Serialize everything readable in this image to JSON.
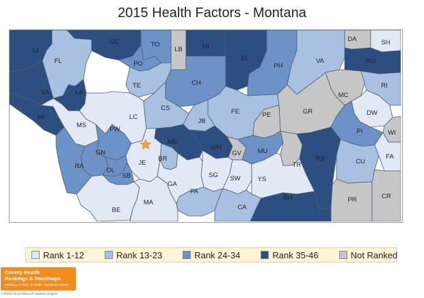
{
  "title": "2015 Health Factors - Montana",
  "colors": {
    "rank_1_12": "#e1e9f4",
    "rank_13_23": "#a9c1e1",
    "rank_24_34": "#6c92c8",
    "rank_35_46": "#2c4e80",
    "not_ranked": "#c6c6c6",
    "star": "#f3a839"
  },
  "legend": [
    {
      "label": "Rank 1-12",
      "color": "#e1e9f4"
    },
    {
      "label": "Rank 13-23",
      "color": "#a9c1e1"
    },
    {
      "label": "Rank 24-34",
      "color": "#6c92c8"
    },
    {
      "label": "Rank 35-46",
      "color": "#2c4e80"
    },
    {
      "label": "Not Ranked",
      "color": "#c6c6c6"
    }
  ],
  "counties": [
    {
      "label": "LI",
      "rank": "Rank 35-46"
    },
    {
      "label": "FL",
      "rank": "Rank 13-23"
    },
    {
      "label": "GC",
      "rank": "Rank 35-46"
    },
    {
      "label": "TO",
      "rank": "Rank 24-34"
    },
    {
      "label": "LB",
      "rank": "Not Ranked"
    },
    {
      "label": "HI",
      "rank": "Rank 35-46"
    },
    {
      "label": "BL",
      "rank": "Rank 35-46"
    },
    {
      "label": "PH",
      "rank": "Rank 24-34"
    },
    {
      "label": "VA",
      "rank": "Rank 13-23"
    },
    {
      "label": "DA",
      "rank": "Not Ranked"
    },
    {
      "label": "SH",
      "rank": "Rank 1-12"
    },
    {
      "label": "RO",
      "rank": "Rank 35-46"
    },
    {
      "label": "PO",
      "rank": "Rank 24-34"
    },
    {
      "label": "SA",
      "rank": "Rank 35-46"
    },
    {
      "label": "LA",
      "rank": "Rank 35-46"
    },
    {
      "label": "TE",
      "rank": "Rank 13-23"
    },
    {
      "label": "CH",
      "rank": "Rank 24-34"
    },
    {
      "label": "MC",
      "rank": "Not Ranked"
    },
    {
      "label": "RI",
      "rank": "Rank 13-23"
    },
    {
      "label": "MI",
      "rank": "Rank 35-46"
    },
    {
      "label": "MS",
      "rank": "Rank 1-12"
    },
    {
      "label": "LC",
      "rank": "Rank 1-12"
    },
    {
      "label": "CS",
      "rank": "Rank 13-23"
    },
    {
      "label": "FE",
      "rank": "Rank 13-23"
    },
    {
      "label": "GR",
      "rank": "Not Ranked"
    },
    {
      "label": "DW",
      "rank": "Rank 1-12"
    },
    {
      "label": "JB",
      "rank": "Rank 13-23"
    },
    {
      "label": "PE",
      "rank": "Not Ranked"
    },
    {
      "label": "PW",
      "rank": "Rank 24-34"
    },
    {
      "label": "PI",
      "rank": "Rank 24-34"
    },
    {
      "label": "WI",
      "rank": "Not Ranked"
    },
    {
      "label": "GN",
      "rank": "Rank 24-34"
    },
    {
      "label": "ME",
      "rank": "Rank 35-46"
    },
    {
      "label": "WH",
      "rank": "Rank 35-46"
    },
    {
      "label": "GV",
      "rank": "Not Ranked"
    },
    {
      "label": "MU",
      "rank": "Rank 24-34"
    },
    {
      "label": "RA",
      "rank": "Rank 24-34"
    },
    {
      "label": "JE",
      "rank": "Rank 1-12"
    },
    {
      "label": "BR",
      "rank": "Rank 13-23"
    },
    {
      "label": "TR",
      "rank": "Not Ranked"
    },
    {
      "label": "RS",
      "rank": "Rank 35-46"
    },
    {
      "label": "CU",
      "rank": "Rank 13-23"
    },
    {
      "label": "FA",
      "rank": "Rank 1-12"
    },
    {
      "label": "DL",
      "rank": "Rank 24-34"
    },
    {
      "label": "SB",
      "rank": "Rank 24-34"
    },
    {
      "label": "SG",
      "rank": "Rank 1-12"
    },
    {
      "label": "SW",
      "rank": "Rank 1-12"
    },
    {
      "label": "YS",
      "rank": "Rank 1-12"
    },
    {
      "label": "GA",
      "rank": "Rank 1-12"
    },
    {
      "label": "PA",
      "rank": "Rank 13-23"
    },
    {
      "label": "BE",
      "rank": "Rank 1-12"
    },
    {
      "label": "MA",
      "rank": "Rank 1-12"
    },
    {
      "label": "CA",
      "rank": "Rank 13-23"
    },
    {
      "label": "BH",
      "rank": "Rank 35-46"
    },
    {
      "label": "PR",
      "rank": "Not Ranked"
    },
    {
      "label": "CR",
      "rank": "Not Ranked"
    }
  ],
  "logo": {
    "line1": "County Health",
    "line2": "Rankings & Roadmaps",
    "line3": "Building a Culture of Health, County by County"
  },
  "footer": "A Robert Wood Johnson Foundation program"
}
